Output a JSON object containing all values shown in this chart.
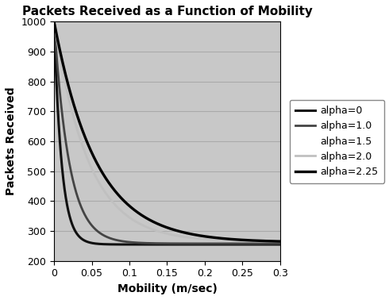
{
  "title": "Packets Received as a Function of Mobility",
  "xlabel": "Mobility (m/sec)",
  "ylabel": "Packets Received",
  "xlim": [
    0,
    0.3
  ],
  "ylim": [
    200,
    1000
  ],
  "yticks": [
    200,
    300,
    400,
    500,
    600,
    700,
    800,
    900,
    1000
  ],
  "xticks": [
    0,
    0.05,
    0.1,
    0.15,
    0.2,
    0.25,
    0.3
  ],
  "plot_bg": "#c8c8c8",
  "fig_bg": "#ffffff",
  "curve_params": [
    {
      "label": "alpha=0",
      "color": "#111111",
      "lw": 2.2,
      "base": 255,
      "scale": 745,
      "decay": 100,
      "has_line": true
    },
    {
      "label": "alpha=1.0",
      "color": "#444444",
      "lw": 2.0,
      "base": 258,
      "scale": 742,
      "decay": 50,
      "has_line": true
    },
    {
      "label": "alpha=1.5",
      "color": "#888888",
      "lw": 0.0,
      "base": 261,
      "scale": 739,
      "decay": 35,
      "has_line": false
    },
    {
      "label": "alpha=2.0",
      "color": "#c0c0c0",
      "lw": 2.0,
      "base": 264,
      "scale": 736,
      "decay": 22,
      "has_line": true
    },
    {
      "label": "alpha=2.25",
      "color": "#000000",
      "lw": 2.4,
      "base": 262,
      "scale": 738,
      "decay": 18,
      "has_line": true
    }
  ],
  "grid_color": "#aaaaaa",
  "grid_lw": 0.8,
  "title_fontsize": 11,
  "label_fontsize": 10,
  "tick_fontsize": 9,
  "legend_fontsize": 9
}
